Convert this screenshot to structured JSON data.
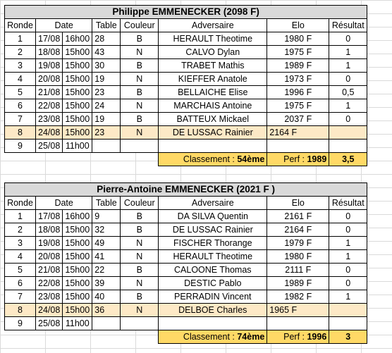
{
  "players": [
    {
      "title": "Philippe EMMENECKER (2098 F)",
      "headers": [
        "Ronde",
        "Date",
        "Table",
        "Couleur",
        "Adversaire",
        "Elo",
        "Résultat"
      ],
      "rows": [
        {
          "ronde": "1",
          "date": "17/08",
          "time": "16h00",
          "table": "28",
          "couleur": "B",
          "adversaire": "HERAULT Theotime",
          "elo": "1980 F",
          "resultat": "0"
        },
        {
          "ronde": "2",
          "date": "18/08",
          "time": "15h00",
          "table": "43",
          "couleur": "N",
          "adversaire": "CALVO Dylan",
          "elo": "1975 F",
          "resultat": "1"
        },
        {
          "ronde": "3",
          "date": "19/08",
          "time": "15h00",
          "table": "30",
          "couleur": "B",
          "adversaire": "TRABET Mathis",
          "elo": "1989 F",
          "resultat": "1"
        },
        {
          "ronde": "4",
          "date": "20/08",
          "time": "15h00",
          "table": "19",
          "couleur": "N",
          "adversaire": "KIEFFER Anatole",
          "elo": "1973 F",
          "resultat": "0"
        },
        {
          "ronde": "5",
          "date": "21/08",
          "time": "15h00",
          "table": "23",
          "couleur": "B",
          "adversaire": "BELLAICHE Elise",
          "elo": "1996 F",
          "resultat": "0,5"
        },
        {
          "ronde": "6",
          "date": "22/08",
          "time": "15h00",
          "table": "24",
          "couleur": "N",
          "adversaire": "MARCHAIS Antoine",
          "elo": "1975 F",
          "resultat": "1"
        },
        {
          "ronde": "7",
          "date": "23/08",
          "time": "15h00",
          "table": "19",
          "couleur": "B",
          "adversaire": "BATTEUX Mickael",
          "elo": "2037 F",
          "resultat": "0"
        },
        {
          "ronde": "8",
          "date": "24/08",
          "time": "15h00",
          "table": "23",
          "couleur": "N",
          "adversaire": "DE LUSSAC Rainier",
          "elo": "2164 F",
          "resultat": ""
        },
        {
          "ronde": "9",
          "date": "25/08",
          "time": "11h00",
          "table": "",
          "couleur": "",
          "adversaire": "",
          "elo": "",
          "resultat": ""
        }
      ],
      "classement_label": "Classement : ",
      "classement_value": "54ème",
      "perf_label": "Perf : ",
      "perf_value": "1989",
      "score": "3,5"
    },
    {
      "title": "Pierre-Antoine EMMENECKER (2021 F )",
      "headers": [
        "Ronde",
        "Date",
        "Table",
        "Couleur",
        "Adversaire",
        "Elo",
        "Résultat"
      ],
      "rows": [
        {
          "ronde": "1",
          "date": "17/08",
          "time": "16h00",
          "table": "9",
          "couleur": "B",
          "adversaire": "DA SILVA Quentin",
          "elo": "2161 F",
          "resultat": "0"
        },
        {
          "ronde": "2",
          "date": "18/08",
          "time": "15h00",
          "table": "32",
          "couleur": "B",
          "adversaire": "DE LUSSAC Rainier",
          "elo": "2164 F",
          "resultat": "0"
        },
        {
          "ronde": "3",
          "date": "19/08",
          "time": "15h00",
          "table": "49",
          "couleur": "N",
          "adversaire": "FISCHER Thorange",
          "elo": "1979 F",
          "resultat": "1"
        },
        {
          "ronde": "4",
          "date": "20/08",
          "time": "15h00",
          "table": "41",
          "couleur": "N",
          "adversaire": "HERAULT Theotime",
          "elo": "1980 F",
          "resultat": "1"
        },
        {
          "ronde": "5",
          "date": "21/08",
          "time": "15h00",
          "table": "22",
          "couleur": "B",
          "adversaire": "CALOONE Thomas",
          "elo": "2111 F",
          "resultat": "0"
        },
        {
          "ronde": "6",
          "date": "22/08",
          "time": "15h00",
          "table": "39",
          "couleur": "N",
          "adversaire": "DESTIC Pablo",
          "elo": "1989 F",
          "resultat": "0"
        },
        {
          "ronde": "7",
          "date": "23/08",
          "time": "15h00",
          "table": "40",
          "couleur": "B",
          "adversaire": "PERRADIN Vincent",
          "elo": "1982 F",
          "resultat": "1"
        },
        {
          "ronde": "8",
          "date": "24/08",
          "time": "15h00",
          "table": "36",
          "couleur": "N",
          "adversaire": "DELBOE Charles",
          "elo": "1965 F",
          "resultat": ""
        },
        {
          "ronde": "9",
          "date": "25/08",
          "time": "11h00",
          "table": "",
          "couleur": "",
          "adversaire": "",
          "elo": "",
          "resultat": ""
        }
      ],
      "classement_label": "Classement : ",
      "classement_value": "74ème",
      "perf_label": "Perf : ",
      "perf_value": "1996",
      "score": "3"
    }
  ],
  "colors": {
    "title_bg": "#d9d9d9",
    "highlight_row": "#fde9c6",
    "summary_bg": "#ffd966"
  }
}
